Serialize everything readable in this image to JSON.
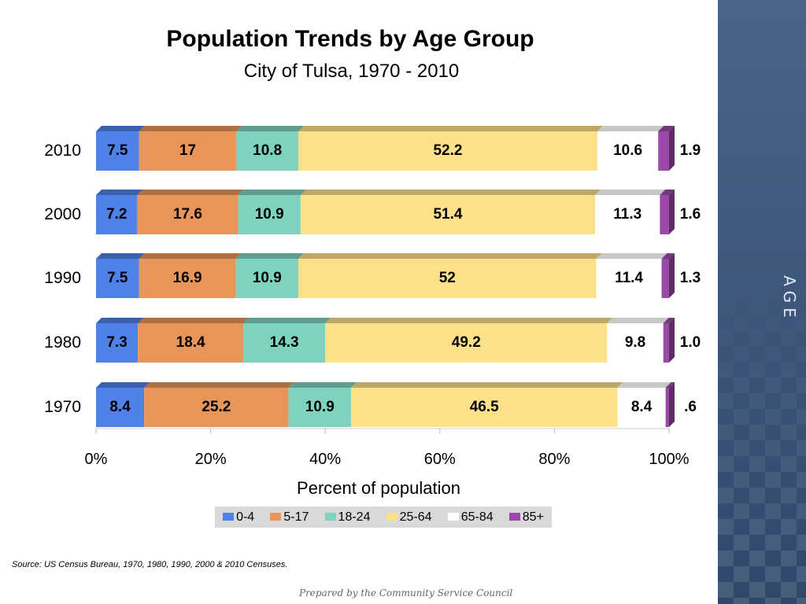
{
  "side_label": "AGE",
  "chart_data": {
    "type": "bar",
    "stacked": true,
    "orientation": "horizontal",
    "percent": true,
    "title": "Population Trends by Age Group",
    "subtitle": "City of Tulsa, 1970 - 2010",
    "xlabel": "Percent of population",
    "xlim": [
      0,
      100
    ],
    "xticks": [
      "0%",
      "20%",
      "40%",
      "60%",
      "80%",
      "100%"
    ],
    "categories": [
      "2010",
      "2000",
      "1990",
      "1980",
      "1970"
    ],
    "series": [
      {
        "name": "0-4",
        "color": "#4f81e8",
        "values": [
          7.5,
          7.2,
          7.5,
          7.3,
          8.4
        ],
        "labels": [
          "7.5",
          "7.2",
          "7.5",
          "7.3",
          "8.4"
        ]
      },
      {
        "name": "5-17",
        "color": "#e8955a",
        "values": [
          17,
          17.6,
          16.9,
          18.4,
          25.2
        ],
        "labels": [
          "17",
          "17.6",
          "16.9",
          "18.4",
          "25.2"
        ]
      },
      {
        "name": "18-24",
        "color": "#7dd3c0",
        "values": [
          10.8,
          10.9,
          10.9,
          14.3,
          10.9
        ],
        "labels": [
          "10.8",
          "10.9",
          "10.9",
          "14.3",
          "10.9"
        ]
      },
      {
        "name": "25-64",
        "color": "#fde08a",
        "values": [
          52.2,
          51.4,
          52,
          49.2,
          46.5
        ],
        "labels": [
          "52.2",
          "51.4",
          "52",
          "49.2",
          "46.5"
        ]
      },
      {
        "name": "65-84",
        "color": "#ffffff",
        "values": [
          10.6,
          11.3,
          11.4,
          9.8,
          8.4
        ],
        "labels": [
          "10.6",
          "11.3",
          "11.4",
          "9.8",
          "8.4"
        ]
      },
      {
        "name": "85+",
        "color": "#9b4aa8",
        "values": [
          1.9,
          1.6,
          1.3,
          1.0,
          0.6
        ],
        "labels": [
          "1.9",
          "1.6",
          "1.3",
          "1.0",
          ".6"
        ]
      }
    ],
    "legend": "bottom"
  },
  "source": "Source:  US Census Bureau, 1970, 1980, 1990, 2000 & 2010 Censuses.",
  "footer": "Prepared by the Community Service Council"
}
